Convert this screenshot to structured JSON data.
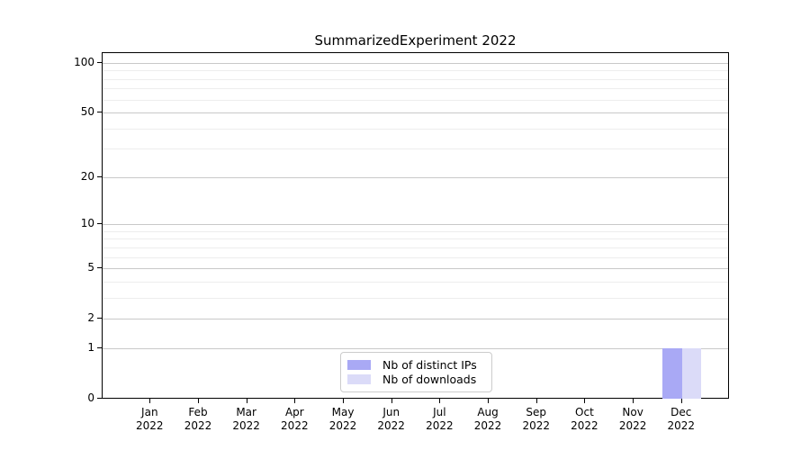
{
  "title": "SummarizedExperiment 2022",
  "chart_data": {
    "type": "bar",
    "title": "SummarizedExperiment 2022",
    "categories": [
      "Jan 2022",
      "Feb 2022",
      "Mar 2022",
      "Apr 2022",
      "May 2022",
      "Jun 2022",
      "Jul 2022",
      "Aug 2022",
      "Sep 2022",
      "Oct 2022",
      "Nov 2022",
      "Dec 2022"
    ],
    "series": [
      {
        "name": "Nb of distinct IPs",
        "color": "#a9a9f5",
        "values": [
          0,
          0,
          0,
          0,
          0,
          0,
          0,
          0,
          0,
          0,
          0,
          1
        ]
      },
      {
        "name": "Nb of downloads",
        "color": "#dbdbf8",
        "values": [
          0,
          0,
          0,
          0,
          0,
          0,
          0,
          0,
          0,
          0,
          0,
          1
        ]
      }
    ],
    "xlabel": "",
    "ylabel": "",
    "y_scale": "log10(count+1)",
    "y_ticks": [
      0,
      1,
      2,
      5,
      10,
      20,
      50,
      100
    ],
    "y_minor_gridlines": [
      3,
      4,
      6,
      7,
      8,
      9,
      30,
      40,
      60,
      70,
      80,
      90
    ],
    "ylim": [
      0,
      116
    ],
    "grid": "horizontal",
    "legend_position": "lower center"
  },
  "legend": {
    "items": [
      {
        "label": "Nb of distinct IPs",
        "color": "#a9a9f5"
      },
      {
        "label": "Nb of downloads",
        "color": "#dbdbf8"
      }
    ]
  }
}
